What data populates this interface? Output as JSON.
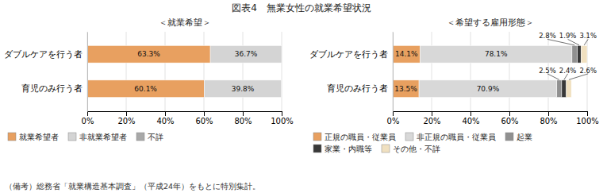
{
  "title": "図表4　無業女性の就業希望状況",
  "footnote": "（備考）総務省「就業構造基本調査」（平成24年）をもとに特別集計。",
  "chart_data": [
    {
      "type": "bar",
      "orientation": "horizontal",
      "stacked": true,
      "title": "＜就業希望＞",
      "categories": [
        "ダブルケアを行う者",
        "育児のみ行う者"
      ],
      "series": [
        {
          "name": "就業希望者",
          "color": "#E8A060",
          "values": [
            63.3,
            60.1
          ],
          "value_labels": [
            "63.3%",
            "60.1%"
          ]
        },
        {
          "name": "非就業希望者",
          "color": "#D4D4D4",
          "values": [
            36.7,
            39.8
          ],
          "value_labels": [
            "36.7%",
            "39.8%"
          ]
        },
        {
          "name": "不詳",
          "color": "#A8A8A8",
          "values": [
            0.0,
            0.0
          ],
          "value_labels": [
            null,
            null
          ]
        }
      ],
      "xlim": [
        0,
        100
      ],
      "xticks": [
        {
          "value": 0,
          "label": "0%"
        },
        {
          "value": 20,
          "label": "20%"
        },
        {
          "value": 40,
          "label": "40%"
        },
        {
          "value": 60,
          "label": "60%"
        },
        {
          "value": 80,
          "label": "80%"
        },
        {
          "value": 100,
          "label": "100%"
        }
      ],
      "grid": true,
      "data_labels": true,
      "legend": "bottom"
    },
    {
      "type": "bar",
      "orientation": "horizontal",
      "stacked": true,
      "title": "＜希望する雇用形態＞",
      "categories": [
        "ダブルケアを行う者",
        "育児のみ行う者"
      ],
      "series": [
        {
          "name": "正規の職員・従業員",
          "color": "#E8A060",
          "values": [
            14.1,
            13.5
          ],
          "value_labels": [
            "14.1%",
            "13.5%"
          ]
        },
        {
          "name": "非正規の職員・従業員",
          "color": "#D8D8D8",
          "values": [
            78.1,
            70.9
          ],
          "value_labels": [
            "78.1%",
            "70.9%"
          ]
        },
        {
          "name": "起業",
          "color": "#909090",
          "values": [
            2.8,
            2.5
          ],
          "value_labels": [
            "2.8%",
            "2.5%"
          ]
        },
        {
          "name": "家業・内職等",
          "color": "#383838",
          "values": [
            1.9,
            2.4
          ],
          "value_labels": [
            "1.9%",
            "2.4%"
          ]
        },
        {
          "name": "その他・不詳",
          "color": "#F0E0C0",
          "values": [
            3.1,
            2.6
          ],
          "value_labels": [
            "3.1%",
            "2.6%"
          ]
        }
      ],
      "xlim": [
        0,
        100
      ],
      "xticks": [
        {
          "value": 0,
          "label": "0%"
        },
        {
          "value": 20,
          "label": "20%"
        },
        {
          "value": 40,
          "label": "40%"
        },
        {
          "value": 60,
          "label": "60%"
        },
        {
          "value": 80,
          "label": "80%"
        },
        {
          "value": 100,
          "label": "100%"
        }
      ],
      "grid": true,
      "data_labels": true,
      "legend": "bottom"
    }
  ]
}
